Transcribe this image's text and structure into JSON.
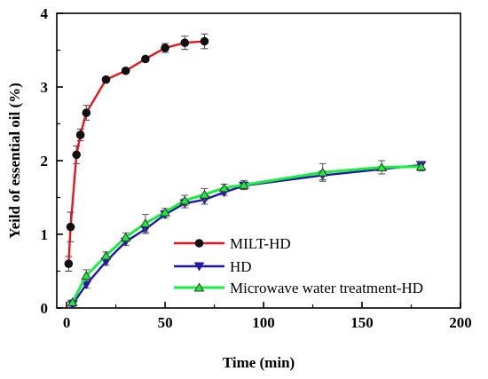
{
  "chart_data": {
    "type": "line",
    "title": "",
    "xlabel": "Time (min)",
    "ylabel": "Yeild of essential oil (%)",
    "xlim": [
      -5,
      200
    ],
    "ylim": [
      0,
      4
    ],
    "xticks": [
      0,
      50,
      100,
      150,
      200
    ],
    "yticks": [
      0,
      1,
      2,
      3,
      4
    ],
    "grid": false,
    "legend_position": "bottom-right",
    "series": [
      {
        "name": "MILT-HD",
        "marker": "circle",
        "color": "#e8151c",
        "marker_color": "#111111",
        "x": [
          1,
          2,
          5,
          7,
          10,
          20,
          30,
          40,
          50,
          60,
          70
        ],
        "y": [
          0.6,
          1.1,
          2.08,
          2.35,
          2.65,
          3.1,
          3.22,
          3.38,
          3.53,
          3.6,
          3.62
        ],
        "err": [
          0.1,
          0.2,
          0.12,
          0.08,
          0.1,
          0.03,
          0.03,
          0.03,
          0.06,
          0.09,
          0.1
        ]
      },
      {
        "name": "HD",
        "marker": "triangle-down",
        "color": "#1d18a8",
        "marker_color": "#1d18a8",
        "x": [
          3,
          10,
          20,
          30,
          40,
          50,
          60,
          70,
          80,
          90,
          130,
          180
        ],
        "y": [
          0.05,
          0.32,
          0.63,
          0.9,
          1.07,
          1.27,
          1.42,
          1.47,
          1.57,
          1.66,
          1.8,
          1.94
        ],
        "err": [
          0.03,
          0.05,
          0.05,
          0.05,
          0.06,
          0.05,
          0.06,
          0.06,
          0.04,
          0.05,
          0.06,
          0.05
        ]
      },
      {
        "name": "Microwave water treatment-HD",
        "marker": "triangle-up",
        "color": "#18ee3c",
        "marker_color": "#18ee3c",
        "x": [
          3,
          10,
          20,
          30,
          40,
          50,
          60,
          70,
          80,
          90,
          130,
          160,
          180
        ],
        "y": [
          0.08,
          0.44,
          0.71,
          0.96,
          1.15,
          1.3,
          1.46,
          1.54,
          1.63,
          1.67,
          1.84,
          1.91,
          1.92
        ],
        "err": [
          0.03,
          0.08,
          0.05,
          0.06,
          0.12,
          0.05,
          0.07,
          0.08,
          0.05,
          0.06,
          0.12,
          0.09,
          0.06
        ]
      }
    ]
  }
}
